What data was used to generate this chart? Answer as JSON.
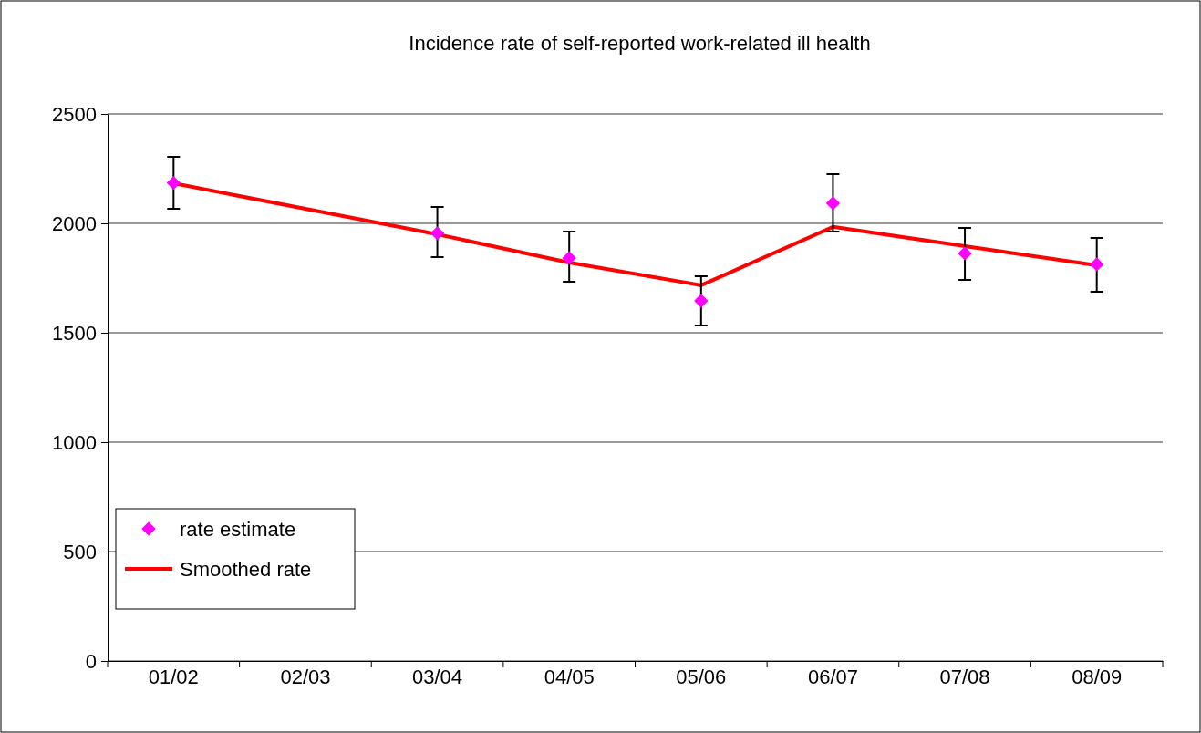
{
  "chart_data": {
    "type": "line",
    "title": "Incidence rate of self-reported work-related ill health",
    "categories": [
      "01/02",
      "02/03",
      "03/04",
      "04/05",
      "05/06",
      "06/07",
      "07/08",
      "08/09"
    ],
    "series": [
      {
        "name": "rate estimate",
        "type": "scatter",
        "color": "#ff00ff",
        "marker": "diamond",
        "values": [
          2185,
          null,
          1955,
          1842,
          1646,
          2092,
          1863,
          1813
        ],
        "errors": [
          [
            2067,
            2304
          ],
          null,
          [
            1846,
            2075
          ],
          [
            1733,
            1963
          ],
          [
            1533,
            1758
          ],
          [
            1963,
            2225
          ],
          [
            1742,
            1979
          ],
          [
            1688,
            1933
          ]
        ]
      },
      {
        "name": "Smoothed rate",
        "color": "#ff0000",
        "marker": "none",
        "line_style": "solid",
        "values": [
          2183,
          null,
          1950,
          1821,
          1717,
          1984,
          1896,
          1808
        ]
      }
    ],
    "ylim": [
      0,
      2500
    ],
    "yticks": [
      0,
      500,
      1000,
      1500,
      2000,
      2500
    ],
    "grid": "y",
    "legend": "bottom left"
  }
}
